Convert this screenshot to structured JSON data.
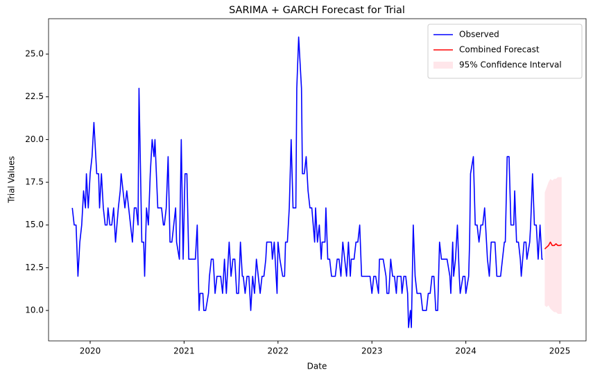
{
  "chart_data": {
    "type": "line",
    "title": "SARIMA + GARCH Forecast for Trial",
    "x_label": "Date",
    "y_label": "Trial Values",
    "xlim": [
      2019.557,
      2025.28
    ],
    "ylim": [
      8.22,
      27.07
    ],
    "xticks": [
      2020,
      2021,
      2022,
      2023,
      2024,
      2025
    ],
    "yticks": [
      {
        "value": 10,
        "label": "10.0"
      },
      12.5,
      {
        "value": 15,
        "label": "15.0"
      },
      17.5,
      {
        "value": 20,
        "label": "20.0"
      },
      22.5,
      {
        "value": 25,
        "label": "25.0"
      }
    ],
    "grid": false,
    "legend": "upper right",
    "series": [
      {
        "name": "Observed",
        "color": "#0000ff",
        "x": [
          2019.81,
          2019.83,
          2019.85,
          2019.87,
          2019.89,
          2019.91,
          2019.93,
          2019.95,
          2019.96,
          2019.98,
          2020.0,
          2020.02,
          2020.04,
          2020.07,
          2020.09,
          2020.1,
          2020.12,
          2020.14,
          2020.16,
          2020.18,
          2020.19,
          2020.21,
          2020.23,
          2020.25,
          2020.27,
          2020.3,
          2020.32,
          2020.33,
          2020.35,
          2020.37,
          2020.39,
          2020.41,
          2020.43,
          2020.45,
          2020.47,
          2020.49,
          2020.51,
          2020.52,
          2020.55,
          2020.57,
          2020.58,
          2020.6,
          2020.62,
          2020.64,
          2020.66,
          2020.68,
          2020.69,
          2020.72,
          2020.74,
          2020.76,
          2020.78,
          2020.79,
          2020.81,
          2020.83,
          2020.85,
          2020.87,
          2020.89,
          2020.91,
          2020.92,
          2020.95,
          2020.97,
          2020.99,
          2021.01,
          2021.03,
          2021.05,
          2021.07,
          2021.09,
          2021.12,
          2021.14,
          2021.16,
          2021.17,
          2021.2,
          2021.21,
          2021.23,
          2021.26,
          2021.27,
          2021.29,
          2021.31,
          2021.33,
          2021.35,
          2021.37,
          2021.39,
          2021.41,
          2021.43,
          2021.45,
          2021.46,
          2021.48,
          2021.5,
          2021.52,
          2021.54,
          2021.56,
          2021.58,
          2021.6,
          2021.62,
          2021.63,
          2021.65,
          2021.67,
          2021.69,
          2021.71,
          2021.73,
          2021.75,
          2021.77,
          2021.79,
          2021.81,
          2021.83,
          2021.85,
          2021.87,
          2021.88,
          2021.91,
          2021.93,
          2021.94,
          2021.96,
          2021.99,
          2022.0,
          2022.02,
          2022.05,
          2022.07,
          2022.08,
          2022.1,
          2022.12,
          2022.14,
          2022.16,
          2022.19,
          2022.2,
          2022.22,
          2022.25,
          2022.26,
          2022.28,
          2022.3,
          2022.32,
          2022.34,
          2022.36,
          2022.39,
          2022.4,
          2022.42,
          2022.44,
          2022.46,
          2022.47,
          2022.5,
          2022.51,
          2022.53,
          2022.55,
          2022.57,
          2022.59,
          2022.61,
          2022.63,
          2022.65,
          2022.67,
          2022.69,
          2022.71,
          2022.73,
          2022.75,
          2022.77,
          2022.78,
          2022.81,
          2022.83,
          2022.85,
          2022.87,
          2022.89,
          2022.9,
          2022.92,
          2022.95,
          2022.97,
          2022.98,
          2023.0,
          2023.02,
          2023.04,
          2023.07,
          2023.08,
          2023.1,
          2023.12,
          2023.15,
          2023.16,
          2023.18,
          2023.2,
          2023.22,
          2023.24,
          2023.26,
          2023.27,
          2023.29,
          2023.31,
          2023.32,
          2023.34,
          2023.36,
          2023.38,
          2023.39,
          2023.41,
          2023.42,
          2023.44,
          2023.46,
          2023.48,
          2023.5,
          2023.52,
          2023.54,
          2023.56,
          2023.58,
          2023.6,
          2023.62,
          2023.64,
          2023.66,
          2023.68,
          2023.7,
          2023.72,
          2023.74,
          2023.76,
          2023.78,
          2023.8,
          2023.83,
          2023.84,
          2023.86,
          2023.87,
          2023.89,
          2023.91,
          2023.93,
          2023.94,
          2023.97,
          2023.99,
          2024.0,
          2024.03,
          2024.04,
          2024.05,
          2024.08,
          2024.1,
          2024.12,
          2024.14,
          2024.16,
          2024.18,
          2024.2,
          2024.22,
          2024.23,
          2024.25,
          2024.27,
          2024.29,
          2024.31,
          2024.33,
          2024.35,
          2024.37,
          2024.39,
          2024.41,
          2024.42,
          2024.44,
          2024.46,
          2024.48,
          2024.51,
          2024.52,
          2024.54,
          2024.56,
          2024.58,
          2024.59,
          2024.62,
          2024.64,
          2024.65,
          2024.68,
          2024.69,
          2024.71,
          2024.73,
          2024.75,
          2024.77,
          2024.79,
          2024.81,
          2024.82
        ],
        "values": [
          16,
          15,
          15,
          12,
          14,
          15,
          17,
          16,
          18,
          16,
          18,
          19,
          21,
          18,
          18,
          16,
          18,
          16,
          15,
          15,
          16,
          15,
          15,
          16,
          14,
          16,
          17,
          18,
          17,
          16,
          17,
          16,
          15,
          14,
          16,
          16,
          15,
          23,
          14,
          14,
          12,
          16,
          15,
          18,
          20,
          19,
          20,
          16,
          16,
          16,
          15,
          15,
          16,
          19,
          14,
          14,
          15,
          16,
          14,
          13,
          20,
          13,
          18,
          18,
          13,
          13,
          13,
          13,
          15,
          10,
          11,
          11,
          10,
          10,
          11,
          12,
          13,
          13,
          11,
          12,
          12,
          12,
          11,
          13,
          11,
          12,
          14,
          12,
          13,
          13,
          11,
          11,
          14,
          12,
          12,
          11,
          12,
          12,
          10,
          12,
          11,
          13,
          12,
          11,
          12,
          12,
          13,
          14,
          14,
          14,
          13,
          14,
          11,
          14,
          13,
          12,
          12,
          14,
          14,
          16,
          20,
          16,
          16,
          23,
          26,
          23,
          18,
          18,
          19,
          17,
          16,
          16,
          14,
          16,
          14,
          15,
          13,
          14,
          14,
          16,
          13,
          13,
          12,
          12,
          12,
          13,
          13,
          12,
          14,
          13,
          12,
          14,
          12,
          13,
          13,
          14,
          14,
          15,
          12,
          12,
          12,
          12,
          12,
          12,
          11,
          12,
          12,
          11,
          13,
          13,
          13,
          12,
          11,
          11,
          13,
          12,
          12,
          11,
          12,
          12,
          12,
          11,
          12,
          12,
          11,
          9,
          10,
          9,
          15,
          12,
          11,
          11,
          11,
          10,
          10,
          10,
          11,
          11,
          12,
          12,
          10,
          10,
          14,
          13,
          13,
          13,
          13,
          12,
          11,
          14,
          12,
          13,
          15,
          12,
          11,
          12,
          12,
          11,
          12,
          14,
          18,
          19,
          15,
          15,
          14,
          15,
          15,
          16,
          14,
          13,
          12,
          14,
          14,
          14,
          12,
          12,
          12,
          13,
          14,
          14,
          19,
          19,
          15,
          15,
          17,
          14,
          14,
          13,
          12,
          14,
          14,
          13,
          14,
          15,
          18,
          15,
          15,
          13,
          15,
          13,
          13
        ]
      },
      {
        "name": "Combined Forecast",
        "color": "#ff0000",
        "x": [
          2024.84,
          2024.86,
          2024.88,
          2024.9,
          2024.92,
          2024.94,
          2024.96,
          2024.98,
          2025.0,
          2025.02
        ],
        "values": [
          13.6,
          13.7,
          13.8,
          14.0,
          13.8,
          13.8,
          13.9,
          13.8,
          13.8,
          13.85
        ]
      }
    ],
    "band": {
      "name": "95% Confidence Interval",
      "color": "#ffc0cb",
      "x": [
        2024.84,
        2024.86,
        2024.88,
        2024.9,
        2024.92,
        2024.94,
        2024.96,
        2024.98,
        2025.0,
        2025.02
      ],
      "lower": [
        10.3,
        10.2,
        10.3,
        10.1,
        10.0,
        9.9,
        9.9,
        9.8,
        9.8,
        9.8
      ],
      "upper": [
        16.9,
        17.2,
        17.5,
        17.7,
        17.6,
        17.7,
        17.7,
        17.8,
        17.8,
        17.8
      ]
    }
  }
}
